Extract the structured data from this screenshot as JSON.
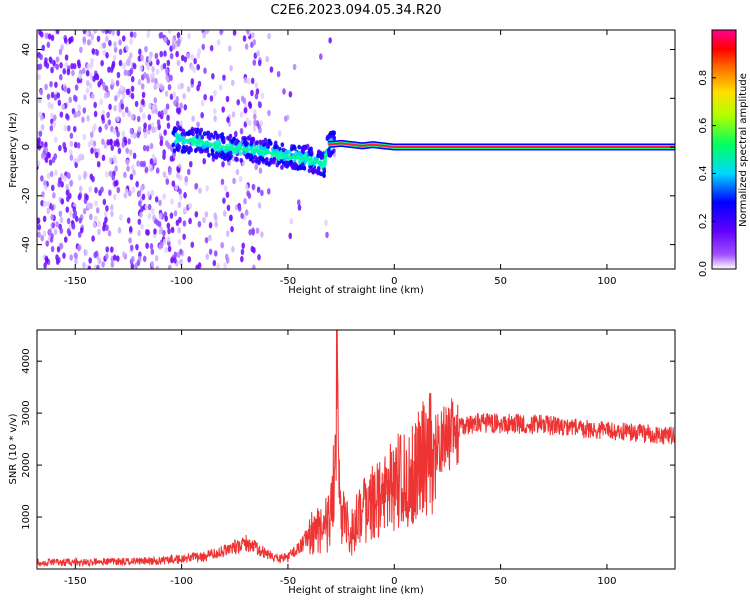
{
  "title": "C2E6.2023.094.05.34.R20",
  "chart_data": [
    {
      "type": "heatmap",
      "xlabel": "Height of straight line (km)",
      "ylabel": "Frequency (Hz)",
      "xlim": [
        -168,
        132
      ],
      "ylim": [
        -50,
        48
      ],
      "x_ticks": [
        -150,
        -100,
        -50,
        0,
        50,
        100
      ],
      "y_ticks": [
        -40,
        -20,
        0,
        20,
        40
      ],
      "colorbar": {
        "label": "Normalized spectral amplitude",
        "range": [
          0.0,
          1.0
        ],
        "ticks": [
          "0.0",
          "0.2",
          "0.4",
          "0.6",
          "0.8"
        ],
        "colors": [
          "#ffffff",
          "#8000ff",
          "#0000ff",
          "#00ffff",
          "#00ff00",
          "#ffff00",
          "#ff8000",
          "#ff0000",
          "#ff0090"
        ]
      },
      "ridge": [
        {
          "x": -100,
          "y": 3
        },
        {
          "x": -90,
          "y": 2
        },
        {
          "x": -80,
          "y": 0
        },
        {
          "x": -70,
          "y": -1
        },
        {
          "x": -60,
          "y": -2
        },
        {
          "x": -50,
          "y": -4
        },
        {
          "x": -40,
          "y": -5
        },
        {
          "x": -33,
          "y": -7
        },
        {
          "x": -31,
          "y": 1
        },
        {
          "x": -25,
          "y": 1.5
        },
        {
          "x": -15,
          "y": 0.5
        },
        {
          "x": -10,
          "y": 1
        },
        {
          "x": 0,
          "y": 0
        },
        {
          "x": 50,
          "y": 0
        },
        {
          "x": 100,
          "y": 0
        },
        {
          "x": 132,
          "y": 0
        }
      ]
    },
    {
      "type": "line",
      "xlabel": "Height of straight line (km)",
      "ylabel": "SNR (10 * v/v)",
      "xlim": [
        -168,
        132
      ],
      "ylim": [
        0,
        4600
      ],
      "x_ticks": [
        -150,
        -100,
        -50,
        0,
        50,
        100
      ],
      "y_ticks": [
        1000,
        2000,
        3000,
        4000
      ],
      "color": "#ee3333",
      "series": [
        {
          "x": [
            -168,
            -150,
            -130,
            -110,
            -90,
            -80,
            -70,
            -60,
            -55,
            -50,
            -45,
            -40,
            -35,
            -30,
            -28,
            -27,
            -26,
            -25,
            -22,
            -20,
            -15,
            -10,
            -5,
            0,
            5,
            10,
            15,
            20,
            25,
            30,
            35,
            40,
            50,
            60,
            70,
            80,
            90,
            100,
            110,
            120,
            132
          ],
          "y": [
            120,
            130,
            140,
            160,
            230,
            350,
            500,
            300,
            200,
            220,
            400,
            650,
            800,
            900,
            2000,
            3800,
            2500,
            1200,
            900,
            700,
            1100,
            1300,
            1450,
            1650,
            1800,
            1950,
            2150,
            2350,
            2550,
            2700,
            2780,
            2800,
            2800,
            2780,
            2780,
            2720,
            2700,
            2650,
            2630,
            2600,
            2550
          ]
        }
      ]
    }
  ]
}
